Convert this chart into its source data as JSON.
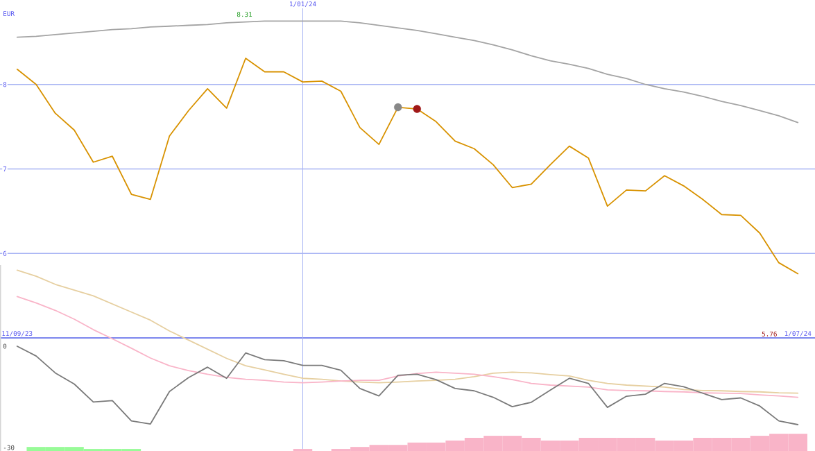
{
  "chart_data": [
    {
      "type": "line",
      "ylabel": "EUR",
      "categories": [
        "11/09/23",
        null,
        null,
        null,
        null,
        null,
        null,
        null,
        null,
        null,
        null,
        null,
        null,
        null,
        null,
        "1/01/24",
        null,
        null,
        null,
        null,
        null,
        null,
        null,
        null,
        null,
        null,
        null,
        null,
        null,
        null,
        null,
        null,
        null,
        null,
        null,
        null,
        null,
        null,
        null,
        null,
        null,
        "1/07/24"
      ],
      "series": [
        {
          "color": "#a4a4a4",
          "values": [
            8.56,
            8.57,
            8.59,
            8.61,
            8.63,
            8.65,
            8.66,
            8.68,
            8.69,
            8.7,
            8.71,
            8.73,
            8.74,
            8.75,
            8.75,
            8.75,
            8.75,
            8.75,
            8.73,
            8.7,
            8.67,
            8.64,
            8.6,
            8.56,
            8.52,
            8.47,
            8.41,
            8.34,
            8.28,
            8.24,
            8.19,
            8.12,
            8.07,
            8.0,
            7.95,
            7.91,
            7.86,
            7.8,
            7.75,
            7.69,
            7.63,
            7.55
          ]
        },
        {
          "color": "#d89200",
          "values": [
            8.18,
            8.0,
            7.66,
            7.46,
            7.08,
            7.15,
            6.7,
            6.64,
            7.39,
            7.69,
            7.95,
            7.72,
            8.31,
            8.15,
            8.15,
            8.03,
            8.04,
            7.92,
            7.49,
            7.29,
            7.73,
            7.71,
            7.56,
            7.33,
            7.24,
            7.05,
            6.78,
            6.82,
            7.05,
            7.27,
            7.13,
            6.56,
            6.75,
            6.74,
            6.92,
            6.8,
            6.64,
            6.46,
            6.45,
            6.24,
            5.89,
            5.76
          ]
        },
        {
          "type": "scatter",
          "marker": "circle",
          "color": "#888888",
          "values": [
            null,
            null,
            null,
            null,
            null,
            null,
            null,
            null,
            null,
            null,
            null,
            null,
            null,
            null,
            null,
            null,
            null,
            null,
            null,
            null,
            7.73,
            null,
            null,
            null,
            null,
            null,
            null,
            null,
            null,
            null,
            null,
            null,
            null,
            null,
            null,
            null,
            null,
            null,
            null,
            null,
            null,
            null
          ]
        },
        {
          "type": "scatter",
          "marker": "circle",
          "color": "#a01818",
          "values": [
            null,
            null,
            null,
            null,
            null,
            null,
            null,
            null,
            null,
            null,
            null,
            null,
            null,
            null,
            null,
            null,
            null,
            null,
            null,
            null,
            null,
            7.71,
            null,
            null,
            null,
            null,
            null,
            null,
            null,
            null,
            null,
            null,
            null,
            null,
            null,
            null,
            null,
            null,
            null,
            null,
            null,
            null
          ]
        }
      ],
      "ylim": [
        5,
        9
      ],
      "yticks": [
        6,
        7,
        8
      ],
      "grid": true,
      "annotations": [
        "8.31",
        "5.76"
      ]
    },
    {
      "type": "line",
      "categories": [
        null,
        null,
        null,
        null,
        null,
        null,
        null,
        null,
        null,
        null,
        null,
        null,
        null,
        null,
        null,
        null,
        null,
        null,
        null,
        null,
        null,
        null,
        null,
        null,
        null,
        null,
        null,
        null,
        null,
        null,
        null,
        null,
        null,
        null,
        null,
        null,
        null,
        null,
        null,
        null,
        null,
        null
      ],
      "series": [
        {
          "type": "bar",
          "values": [
            null,
            1.2,
            1.2,
            1.2,
            0.6,
            0.6,
            0.6,
            null,
            null,
            null,
            null,
            null,
            null,
            null,
            null,
            0.6,
            null,
            0.6,
            1.2,
            1.8,
            1.8,
            2.5,
            2.5,
            3.1,
            3.9,
            4.5,
            4.5,
            3.9,
            3.1,
            3.1,
            3.9,
            3.9,
            3.9,
            3.9,
            3.1,
            3.1,
            3.9,
            3.9,
            3.9,
            4.5,
            5.1,
            5.1
          ],
          "base": [
            null,
            -31,
            -31,
            -31,
            -31,
            -31,
            -31,
            null,
            null,
            null,
            null,
            null,
            null,
            null,
            null,
            -31,
            null,
            -31,
            -31,
            -31,
            -31,
            -31,
            -31,
            -31,
            -31,
            -31,
            -31,
            -31,
            -31,
            -31,
            -31,
            -31,
            -31,
            -31,
            -31,
            -31,
            -31,
            -31,
            -31,
            -31,
            -31,
            -31
          ],
          "colors": [
            null,
            "#98fb98",
            "#98fb98",
            "#98fb98",
            "#98fb98",
            "#98fb98",
            "#98fb98",
            null,
            null,
            null,
            null,
            null,
            null,
            null,
            null,
            "#f9b4c8",
            null,
            "#f9b4c8",
            "#f9b4c8",
            "#f9b4c8",
            "#f9b4c8",
            "#f9b4c8",
            "#f9b4c8",
            "#f9b4c8",
            "#f9b4c8",
            "#f9b4c8",
            "#f9b4c8",
            "#f9b4c8",
            "#f9b4c8",
            "#f9b4c8",
            "#f9b4c8",
            "#f9b4c8",
            "#f9b4c8",
            "#f9b4c8",
            "#f9b4c8",
            "#f9b4c8",
            "#f9b4c8",
            "#f9b4c8",
            "#f9b4c8",
            "#f9b4c8",
            "#f9b4c8",
            "#f9b4c8"
          ]
        },
        {
          "color": "#e6cfa0",
          "values": [
            22.5,
            20.7,
            18.3,
            16.6,
            14.9,
            12.5,
            10.1,
            7.7,
            4.5,
            1.8,
            -0.9,
            -3.6,
            -5.8,
            -7.0,
            -8.3,
            -9.5,
            -9.8,
            -10.3,
            -10.6,
            -10.8,
            -10.6,
            -10.3,
            -10.1,
            -9.8,
            -9.0,
            -8.0,
            -7.7,
            -7.9,
            -8.4,
            -8.8,
            -10.1,
            -11.0,
            -11.5,
            -11.8,
            -12.1,
            -12.8,
            -13.1,
            -13.2,
            -13.4,
            -13.5,
            -13.8,
            -13.9
          ]
        },
        {
          "color": "#f9b4c8",
          "values": [
            14.7,
            12.8,
            10.6,
            8.0,
            4.9,
            2.2,
            -0.6,
            -3.5,
            -5.8,
            -7.2,
            -8.3,
            -9.2,
            -9.8,
            -10.1,
            -10.6,
            -10.8,
            -10.6,
            -10.3,
            -10.1,
            -10.1,
            -8.8,
            -8.1,
            -7.7,
            -8.0,
            -8.3,
            -9.0,
            -9.9,
            -11.0,
            -11.5,
            -11.8,
            -12.1,
            -12.9,
            -13.1,
            -13.2,
            -13.4,
            -13.5,
            -13.8,
            -13.9,
            -14.0,
            -14.4,
            -14.7,
            -15.1
          ]
        },
        {
          "color": "#7a7a7a",
          "values": [
            0.0,
            -2.9,
            -7.9,
            -11.2,
            -16.5,
            -16.1,
            -22.1,
            -23.0,
            -13.4,
            -9.3,
            -6.2,
            -9.5,
            -2.0,
            -4.0,
            -4.3,
            -5.7,
            -5.7,
            -7.1,
            -12.5,
            -14.7,
            -8.6,
            -8.3,
            -9.9,
            -12.5,
            -13.2,
            -15.1,
            -17.9,
            -16.6,
            -13.0,
            -9.5,
            -11.0,
            -18.1,
            -14.8,
            -14.2,
            -11.0,
            -12.0,
            -13.9,
            -15.8,
            -15.3,
            -17.7,
            -22.1,
            -23.2
          ]
        }
      ],
      "ylim": [
        -31,
        24
      ],
      "yticks": [
        -30,
        0
      ],
      "tick_labels": "y"
    }
  ]
}
